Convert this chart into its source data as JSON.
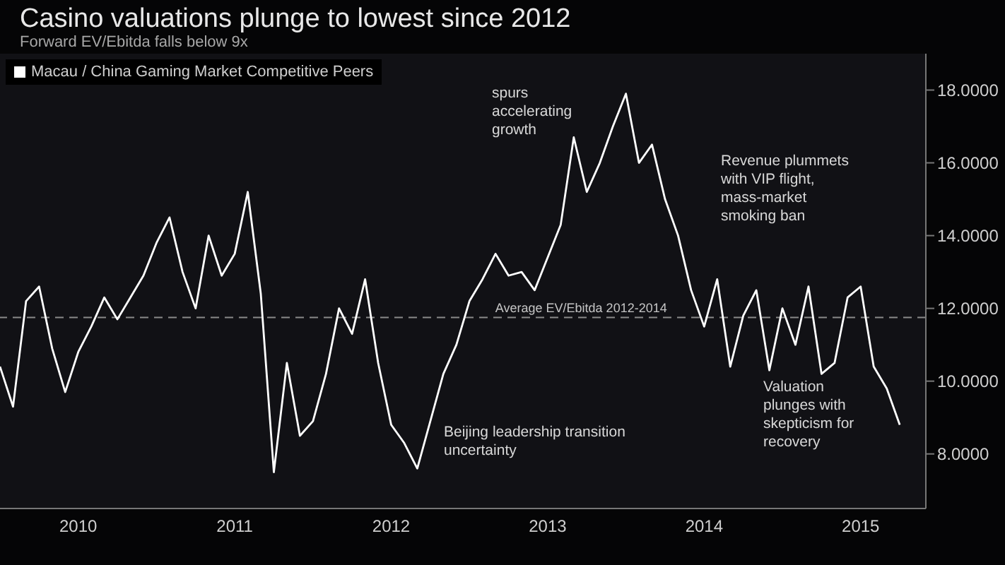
{
  "chart_data": {
    "type": "line",
    "title": "Casino valuations plunge to lowest since 2012",
    "subtitle": "Forward EV/Ebitda falls below 9x",
    "x": [
      "2010-01",
      "2010-02",
      "2010-03",
      "2010-04",
      "2010-05",
      "2010-06",
      "2010-07",
      "2010-08",
      "2010-09",
      "2010-10",
      "2010-11",
      "2010-12",
      "2011-01",
      "2011-02",
      "2011-03",
      "2011-04",
      "2011-05",
      "2011-06",
      "2011-07",
      "2011-08",
      "2011-09",
      "2011-10",
      "2011-11",
      "2011-12",
      "2012-01",
      "2012-02",
      "2012-03",
      "2012-04",
      "2012-05",
      "2012-06",
      "2012-07",
      "2012-08",
      "2012-09",
      "2012-10",
      "2012-11",
      "2012-12",
      "2013-01",
      "2013-02",
      "2013-03",
      "2013-04",
      "2013-05",
      "2013-06",
      "2013-07",
      "2013-08",
      "2013-09",
      "2013-10",
      "2013-11",
      "2013-12",
      "2014-01",
      "2014-02",
      "2014-03",
      "2014-04",
      "2014-05",
      "2014-06",
      "2014-07",
      "2014-08",
      "2014-09",
      "2014-10",
      "2014-11",
      "2014-12",
      "2015-01",
      "2015-02",
      "2015-03",
      "2015-04",
      "2015-05",
      "2015-06",
      "2015-07",
      "2015-08",
      "2015-09",
      "2015-10"
    ],
    "series": [
      {
        "name": "Macau / China Gaming Market Competitive Peers",
        "color": "#ffffff",
        "values": [
          10.4,
          9.3,
          12.2,
          12.6,
          10.9,
          9.7,
          10.8,
          11.5,
          12.3,
          11.7,
          12.3,
          12.9,
          13.8,
          14.5,
          13.0,
          12.0,
          14.0,
          12.9,
          13.5,
          15.2,
          12.4,
          7.5,
          10.5,
          8.5,
          8.9,
          10.2,
          12.0,
          11.3,
          12.8,
          10.5,
          8.8,
          8.3,
          7.6,
          8.9,
          10.2,
          11.0,
          12.2,
          12.8,
          13.5,
          12.9,
          13.0,
          12.5,
          13.4,
          14.3,
          16.7,
          15.2,
          16.0,
          17.0,
          17.9,
          16.0,
          16.5,
          15.0,
          14.0,
          12.5,
          11.5,
          12.8,
          10.4,
          11.8,
          12.5,
          10.3,
          12.0,
          11.0,
          12.6,
          10.2,
          10.5,
          12.3,
          12.6,
          10.4,
          9.8,
          8.8
        ]
      }
    ],
    "xlim": [
      "2010-01",
      "2015-12"
    ],
    "xticks": [
      {
        "value": "2010-07",
        "label": "2010"
      },
      {
        "value": "2011-07",
        "label": "2011"
      },
      {
        "value": "2012-07",
        "label": "2012"
      },
      {
        "value": "2013-07",
        "label": "2013"
      },
      {
        "value": "2014-07",
        "label": "2014"
      },
      {
        "value": "2015-07",
        "label": "2015"
      }
    ],
    "ylim": [
      6.5,
      19
    ],
    "yticks": [
      {
        "value": 8,
        "label": "8.0000"
      },
      {
        "value": 10,
        "label": "10.0000"
      },
      {
        "value": 12,
        "label": "12.0000"
      },
      {
        "value": 14,
        "label": "14.0000"
      },
      {
        "value": 16,
        "label": "16.0000"
      },
      {
        "value": 18,
        "label": "18.0000"
      }
    ],
    "ref_lines": [
      {
        "axis": "y",
        "value": 11.75,
        "label": "Average EV/Ebitda 2012-2014",
        "color": "#8a8a8a",
        "line_style": "dashed"
      }
    ],
    "annotations": [
      "spurs accelerating growth",
      "Revenue plummets with VIP flight, mass-market smoking ban",
      "Beijing leadership transition uncertainty",
      "Valuation plunges with skepticism for recovery"
    ],
    "legend": "top left"
  }
}
